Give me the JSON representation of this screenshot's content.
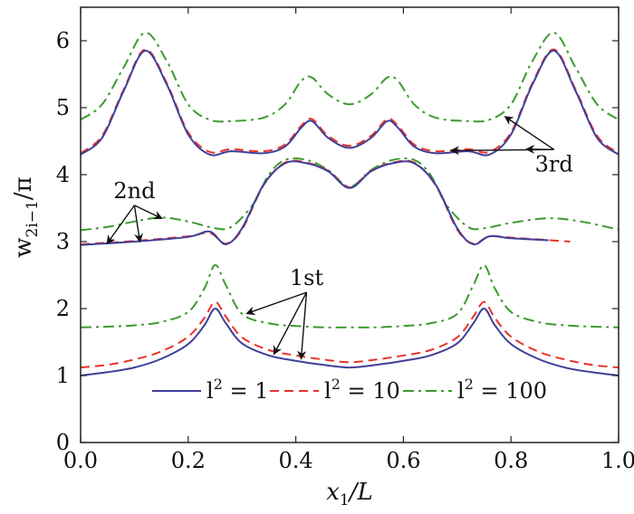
{
  "chart_data": {
    "type": "line",
    "xlabel": "x1/L",
    "xlabel_main": "x",
    "xlabel_sub": "1",
    "xlabel_rest": "/L",
    "ylabel": "w2i−1/π",
    "ylabel_main": "w",
    "ylabel_sub": "2i−1",
    "ylabel_rest": "/π",
    "xlim": [
      0,
      1
    ],
    "ylim": [
      0,
      6.5
    ],
    "xticks": [
      0.0,
      0.2,
      0.4,
      0.6,
      0.8,
      1.0
    ],
    "xtick_labels": [
      "0.0",
      "0.2",
      "0.4",
      "0.6",
      "0.8",
      "1.0"
    ],
    "yticks": [
      0,
      1,
      2,
      3,
      4,
      5,
      6
    ],
    "ytick_labels": [
      "0",
      "1",
      "2",
      "3",
      "4",
      "5",
      "6"
    ],
    "grid": false,
    "legend": {
      "placement": "bottom-center",
      "entries": [
        {
          "label": "l² = 1",
          "main": "l",
          "sup": "2",
          "rest": " = 1",
          "color": "#3f3f9a",
          "dash": "solid"
        },
        {
          "label": "l² = 10",
          "main": "l",
          "sup": "2",
          "rest": " = 10",
          "color": "#e8332a",
          "dash": "dashed"
        },
        {
          "label": "l² = 100",
          "main": "l",
          "sup": "2",
          "rest": " = 100",
          "color": "#3c9a2e",
          "dash": "dashdot"
        }
      ]
    },
    "series": [
      {
        "key": "l1_1st",
        "legend_index": 0,
        "color": "#3f3f9a",
        "dash": "solid",
        "x": [
          0,
          0.05,
          0.1,
          0.15,
          0.2,
          0.23,
          0.25,
          0.27,
          0.3,
          0.35,
          0.4,
          0.45,
          0.5,
          0.55,
          0.6,
          0.65,
          0.7,
          0.73,
          0.75,
          0.77,
          0.8,
          0.85,
          0.9,
          0.95,
          1.0
        ],
        "y": [
          1.0,
          1.05,
          1.12,
          1.25,
          1.47,
          1.75,
          2.0,
          1.78,
          1.48,
          1.3,
          1.22,
          1.16,
          1.12,
          1.16,
          1.22,
          1.3,
          1.48,
          1.78,
          2.0,
          1.75,
          1.47,
          1.25,
          1.12,
          1.05,
          1.0
        ]
      },
      {
        "key": "l10_1st",
        "legend_index": 1,
        "color": "#e8332a",
        "dash": "dashed",
        "x": [
          0,
          0.05,
          0.1,
          0.15,
          0.2,
          0.23,
          0.25,
          0.27,
          0.3,
          0.35,
          0.4,
          0.45,
          0.5,
          0.55,
          0.6,
          0.65,
          0.7,
          0.73,
          0.75,
          0.77,
          0.8,
          0.85,
          0.9,
          0.95,
          1.0
        ],
        "y": [
          1.12,
          1.16,
          1.24,
          1.36,
          1.58,
          1.86,
          2.1,
          1.88,
          1.57,
          1.38,
          1.3,
          1.24,
          1.2,
          1.24,
          1.3,
          1.38,
          1.57,
          1.88,
          2.1,
          1.86,
          1.58,
          1.36,
          1.24,
          1.16,
          1.12
        ]
      },
      {
        "key": "l100_1st",
        "legend_index": 2,
        "color": "#3c9a2e",
        "dash": "dashdot",
        "x": [
          0,
          0.05,
          0.1,
          0.15,
          0.2,
          0.23,
          0.25,
          0.27,
          0.3,
          0.35,
          0.4,
          0.45,
          0.5,
          0.55,
          0.6,
          0.65,
          0.7,
          0.73,
          0.75,
          0.77,
          0.8,
          0.85,
          0.9,
          0.95,
          1.0
        ],
        "y": [
          1.72,
          1.73,
          1.75,
          1.8,
          1.95,
          2.3,
          2.65,
          2.35,
          1.92,
          1.78,
          1.74,
          1.72,
          1.72,
          1.72,
          1.74,
          1.78,
          1.92,
          2.35,
          2.65,
          2.3,
          1.95,
          1.8,
          1.75,
          1.73,
          1.72
        ]
      },
      {
        "key": "l1_2nd",
        "legend_index": 0,
        "color": "#3f3f9a",
        "dash": "solid",
        "x": [
          0.0,
          0.1,
          0.2,
          0.24,
          0.27,
          0.3,
          0.34,
          0.38,
          0.42,
          0.46,
          0.5,
          0.54,
          0.58,
          0.62,
          0.66,
          0.7,
          0.73,
          0.76,
          0.8,
          0.87
        ],
        "y": [
          2.95,
          3.0,
          3.07,
          3.15,
          2.96,
          3.2,
          3.85,
          4.17,
          4.17,
          4.05,
          3.8,
          4.05,
          4.17,
          4.17,
          3.85,
          3.2,
          2.96,
          3.08,
          3.05,
          3.02
        ]
      },
      {
        "key": "l10_2nd",
        "legend_index": 1,
        "color": "#e8332a",
        "dash": "dashed",
        "x": [
          0.0,
          0.1,
          0.2,
          0.24,
          0.27,
          0.3,
          0.34,
          0.38,
          0.42,
          0.46,
          0.5,
          0.54,
          0.58,
          0.62,
          0.66,
          0.7,
          0.73,
          0.76,
          0.8,
          0.91
        ],
        "y": [
          2.96,
          3.01,
          3.08,
          3.13,
          2.97,
          3.18,
          3.84,
          4.18,
          4.18,
          4.06,
          3.81,
          4.06,
          4.18,
          4.18,
          3.84,
          3.18,
          2.97,
          3.08,
          3.06,
          3.0
        ]
      },
      {
        "key": "l100_2nd",
        "legend_index": 2,
        "color": "#3c9a2e",
        "dash": "dashdot",
        "x": [
          0.0,
          0.05,
          0.1,
          0.15,
          0.2,
          0.25,
          0.28,
          0.32,
          0.35,
          0.38,
          0.42,
          0.46,
          0.5,
          0.54,
          0.58,
          0.62,
          0.65,
          0.68,
          0.72,
          0.75,
          0.8,
          0.87,
          0.93,
          1.0
        ],
        "y": [
          3.17,
          3.22,
          3.3,
          3.36,
          3.3,
          3.2,
          3.22,
          3.55,
          4.0,
          4.22,
          4.22,
          4.07,
          3.82,
          4.07,
          4.22,
          4.22,
          4.0,
          3.55,
          3.22,
          3.2,
          3.28,
          3.35,
          3.3,
          3.18
        ]
      },
      {
        "key": "l1_3rd",
        "legend_index": 0,
        "color": "#3f3f9a",
        "dash": "solid",
        "x": [
          0.0,
          0.04,
          0.08,
          0.12,
          0.16,
          0.2,
          0.24,
          0.28,
          0.34,
          0.38,
          0.41,
          0.43,
          0.46,
          0.5,
          0.54,
          0.57,
          0.59,
          0.62,
          0.66,
          0.72,
          0.76,
          0.8,
          0.84,
          0.88,
          0.92,
          0.96,
          1.0
        ],
        "y": [
          4.3,
          4.55,
          5.25,
          5.85,
          5.35,
          4.6,
          4.3,
          4.35,
          4.32,
          4.42,
          4.7,
          4.8,
          4.55,
          4.4,
          4.55,
          4.8,
          4.7,
          4.42,
          4.32,
          4.35,
          4.3,
          4.6,
          5.35,
          5.85,
          5.25,
          4.55,
          4.3
        ]
      },
      {
        "key": "l10_3rd",
        "legend_index": 1,
        "color": "#e8332a",
        "dash": "dashed",
        "x": [
          0.0,
          0.04,
          0.08,
          0.12,
          0.16,
          0.2,
          0.24,
          0.28,
          0.34,
          0.38,
          0.41,
          0.43,
          0.46,
          0.5,
          0.54,
          0.57,
          0.59,
          0.62,
          0.66,
          0.72,
          0.76,
          0.8,
          0.84,
          0.88,
          0.92,
          0.96,
          1.0
        ],
        "y": [
          4.32,
          4.58,
          5.27,
          5.87,
          5.37,
          4.63,
          4.34,
          4.38,
          4.35,
          4.45,
          4.73,
          4.83,
          4.58,
          4.43,
          4.58,
          4.83,
          4.73,
          4.45,
          4.35,
          4.38,
          4.34,
          4.63,
          5.37,
          5.87,
          5.27,
          4.58,
          4.32
        ]
      },
      {
        "key": "l100_3rd",
        "legend_index": 2,
        "color": "#3c9a2e",
        "dash": "dashdot",
        "x": [
          0.0,
          0.04,
          0.08,
          0.12,
          0.16,
          0.2,
          0.24,
          0.28,
          0.34,
          0.38,
          0.41,
          0.43,
          0.46,
          0.5,
          0.54,
          0.57,
          0.59,
          0.62,
          0.66,
          0.72,
          0.76,
          0.8,
          0.84,
          0.88,
          0.92,
          0.96,
          1.0
        ],
        "y": [
          4.82,
          5.05,
          5.6,
          6.12,
          5.7,
          5.05,
          4.82,
          4.8,
          4.85,
          5.05,
          5.4,
          5.45,
          5.2,
          5.05,
          5.2,
          5.45,
          5.4,
          5.05,
          4.85,
          4.8,
          4.82,
          5.05,
          5.7,
          6.12,
          5.6,
          5.05,
          4.82
        ]
      }
    ],
    "annotations": [
      {
        "text": "1st",
        "label_at": [
          0.42,
          2.35
        ],
        "arrows_to": [
          [
            0.31,
            1.93
          ],
          [
            0.36,
            1.33
          ],
          [
            0.41,
            1.26
          ]
        ]
      },
      {
        "text": "2nd",
        "label_at": [
          0.1,
          3.65
        ],
        "arrows_to": [
          [
            0.05,
            2.98
          ],
          [
            0.11,
            3.01
          ],
          [
            0.15,
            3.35
          ]
        ]
      },
      {
        "text": "3rd",
        "label_at": [
          0.88,
          4.05
        ],
        "arrows_to": [
          [
            0.69,
            4.36
          ],
          [
            0.79,
            4.86
          ],
          [
            0.83,
            4.38
          ]
        ]
      }
    ]
  }
}
